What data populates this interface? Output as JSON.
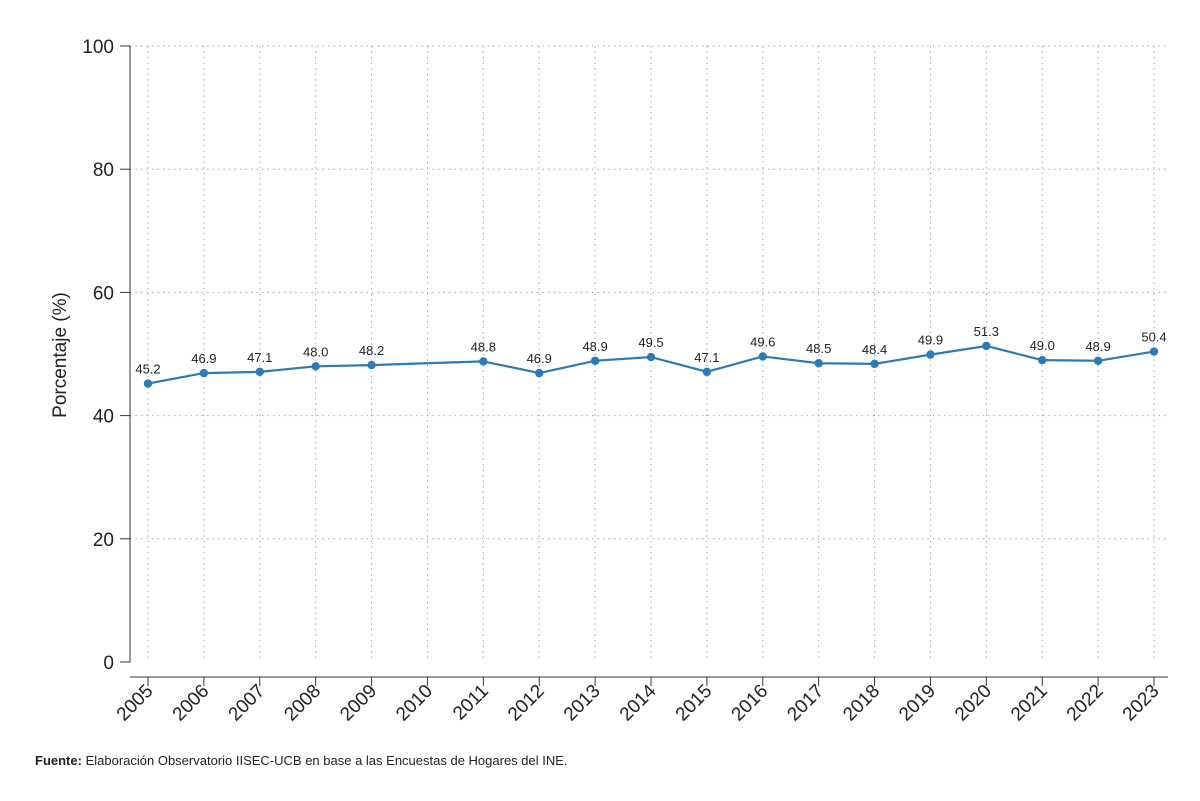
{
  "chart_data": {
    "type": "line",
    "title": "",
    "xlabel": "",
    "ylabel": "Porcentaje (%)",
    "ylim": [
      0,
      100
    ],
    "yticks": [
      0,
      20,
      40,
      60,
      80,
      100
    ],
    "grid": true,
    "x": [
      2005,
      2006,
      2007,
      2008,
      2009,
      2011,
      2012,
      2013,
      2014,
      2015,
      2016,
      2017,
      2018,
      2019,
      2020,
      2021,
      2022,
      2023
    ],
    "x_tick_labels": [
      "2005",
      "2006",
      "2007",
      "2008",
      "2009",
      "2010",
      "2011",
      "2012",
      "2013",
      "2014",
      "2015",
      "2016",
      "2017",
      "2018",
      "2019",
      "2020",
      "2021",
      "2022",
      "2023"
    ],
    "series": [
      {
        "values": [
          45.2,
          46.9,
          47.1,
          48.0,
          48.2,
          48.8,
          46.9,
          48.9,
          49.5,
          47.1,
          49.6,
          48.5,
          48.4,
          49.9,
          51.3,
          49.0,
          48.9,
          50.4
        ],
        "labels": [
          "45.2",
          "46.9",
          "47.1",
          "48.0",
          "48.2",
          "48.8",
          "46.9",
          "48.9",
          "49.5",
          "47.1",
          "49.6",
          "48.5",
          "48.4",
          "49.9",
          "51.3",
          "49.0",
          "48.9",
          "50.4"
        ],
        "color": "#2e7ab5"
      }
    ]
  },
  "source": {
    "label": "Fuente:",
    "text": " Elaboración Observatorio IISEC-UCB en base a las Encuestas de Hogares del INE."
  }
}
